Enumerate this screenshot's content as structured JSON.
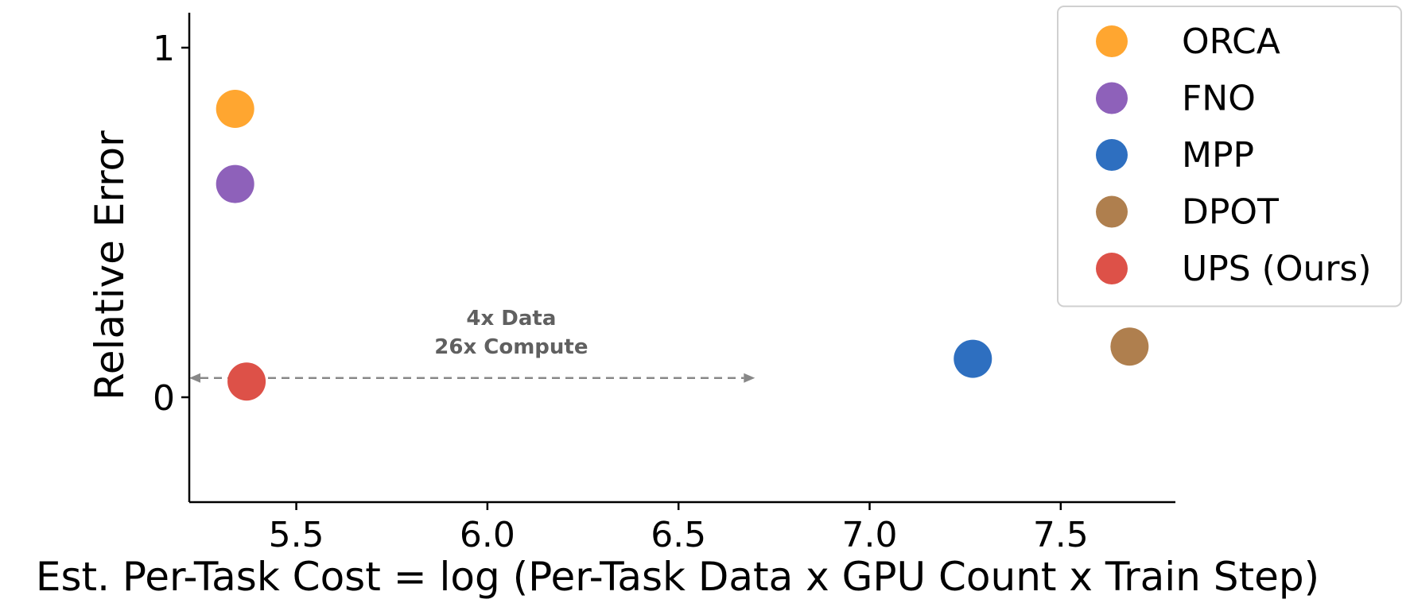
{
  "chart_data": {
    "type": "scatter",
    "xlabel": "Est. Per-Task Cost = log (Per-Task Data x GPU Count x Train Step)",
    "ylabel": "Relative Error",
    "xlim": [
      5.22,
      7.8
    ],
    "ylim": [
      -0.3,
      1.1
    ],
    "x_ticks": [
      5.5,
      6.0,
      6.5,
      7.0,
      7.5
    ],
    "x_tick_labels": [
      "5.5",
      "6.0",
      "6.5",
      "7.0",
      "7.5"
    ],
    "y_ticks": [
      0,
      1
    ],
    "y_tick_labels": [
      "0",
      "1"
    ],
    "grid": false,
    "legend_position": "top-right",
    "series": [
      {
        "name": "ORCA",
        "color": "#FFA630",
        "x": [
          5.34
        ],
        "y": [
          0.825
        ]
      },
      {
        "name": "FNO",
        "color": "#8E61BA",
        "x": [
          5.34
        ],
        "y": [
          0.61
        ]
      },
      {
        "name": "MPP",
        "color": "#2E6FC0",
        "x": [
          7.27
        ],
        "y": [
          0.11
        ]
      },
      {
        "name": "DPOT",
        "color": "#AF7F4E",
        "x": [
          7.68
        ],
        "y": [
          0.145
        ]
      },
      {
        "name": "UPS (Ours)",
        "color": "#DD5148",
        "x": [
          5.37
        ],
        "y": [
          0.045
        ]
      }
    ],
    "annotation": {
      "lines": [
        "4x Data",
        "26x Compute"
      ],
      "color": "#606060",
      "arrow": {
        "y": 0.055,
        "x_start": 5.22,
        "x_end": 6.7,
        "style": "dashed",
        "direction": "both"
      }
    }
  }
}
